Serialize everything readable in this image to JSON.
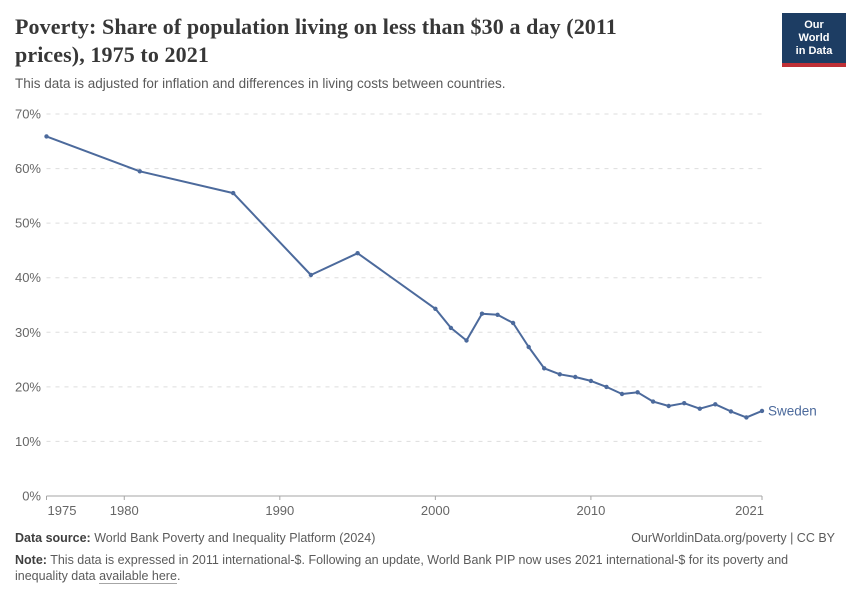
{
  "header": {
    "title": "Poverty: Share of population living on less than $30 a day (2011 prices), 1975 to 2021",
    "subtitle": "This data is adjusted for inflation and differences in living costs between countries.",
    "logo": {
      "line1": "Our World",
      "line2": "in Data",
      "bg": "#1d3d63",
      "accent": "#bf3036"
    }
  },
  "chart_data": {
    "type": "line",
    "title": "Poverty: Share of population living on less than $30 a day (2011 prices), 1975 to 2021",
    "entity": "Sweden",
    "unit": "%",
    "xlim": [
      1975,
      2021
    ],
    "ylim": [
      0,
      70
    ],
    "x_ticks": [
      1975,
      1980,
      1990,
      2000,
      2010,
      2021
    ],
    "y_ticks": [
      0,
      10,
      20,
      30,
      40,
      50,
      60,
      70
    ],
    "y_suffix": "%",
    "grid": "horizontal-dashed",
    "legend_position": "line-end-label",
    "series": [
      {
        "name": "Sweden",
        "color": "#4c6a9c",
        "points": [
          [
            1975,
            65.9
          ],
          [
            1981,
            59.5
          ],
          [
            1987,
            55.5
          ],
          [
            1992,
            40.5
          ],
          [
            1995,
            44.5
          ],
          [
            2000,
            34.3
          ],
          [
            2001,
            30.8
          ],
          [
            2002,
            28.5
          ],
          [
            2003,
            33.4
          ],
          [
            2004,
            33.2
          ],
          [
            2005,
            31.7
          ],
          [
            2006,
            27.3
          ],
          [
            2007,
            23.4
          ],
          [
            2008,
            22.3
          ],
          [
            2009,
            21.8
          ],
          [
            2010,
            21.1
          ],
          [
            2011,
            20.0
          ],
          [
            2012,
            18.7
          ],
          [
            2013,
            19.0
          ],
          [
            2014,
            17.3
          ],
          [
            2015,
            16.5
          ],
          [
            2016,
            17.0
          ],
          [
            2017,
            16.0
          ],
          [
            2018,
            16.8
          ],
          [
            2019,
            15.5
          ],
          [
            2020,
            14.4
          ],
          [
            2021,
            15.6
          ]
        ]
      }
    ],
    "colors": {
      "grid": "#dddddd",
      "axis": "#a5a5a5",
      "tick_label": "#666666"
    }
  },
  "footer": {
    "datasource_label": "Data source:",
    "datasource": "World Bank Poverty and Inequality Platform (2024)",
    "attribution": "OurWorldinData.org/poverty | CC BY",
    "note_label": "Note:",
    "note_pre": "This data is expressed in 2011 international-$. Following an update, World Bank PIP now uses 2021 international-$ for its poverty and inequality data ",
    "note_link": "available here",
    "note_post": "."
  }
}
